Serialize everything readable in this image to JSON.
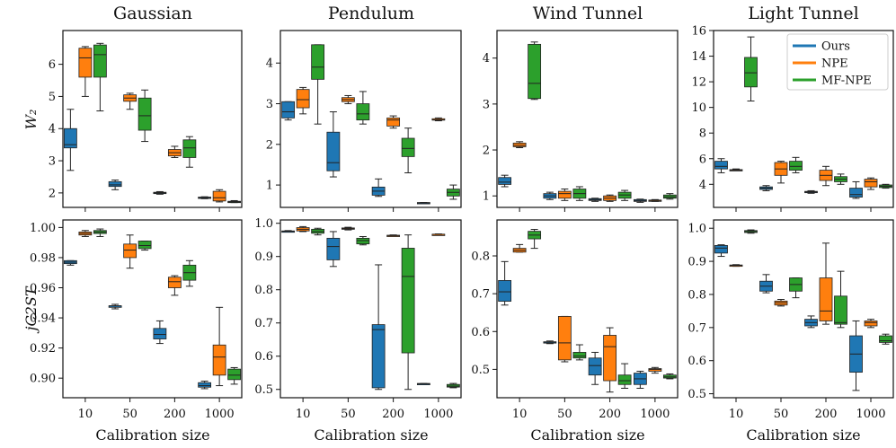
{
  "figure": {
    "col_titles": [
      "Gaussian",
      "Pendulum",
      "Wind Tunnel",
      "Light Tunnel"
    ],
    "row_ylabels": [
      "W₂",
      "jC2ST"
    ],
    "xlabel": "Calibration size",
    "x_ticks": [
      "10",
      "50",
      "200",
      "1000"
    ]
  },
  "colors": {
    "Ours": "#1f77b4",
    "NPE": "#ff7f0e",
    "MF-NPE": "#2ca02c"
  },
  "legend": [
    "Ours",
    "NPE",
    "MF-NPE"
  ],
  "chart_data": [
    {
      "type": "box",
      "title": "Gaussian",
      "ylabel": "W₂",
      "xlabel": "",
      "categories": [
        "10",
        "50",
        "200",
        "1000"
      ],
      "ylim": [
        1.55,
        7.05
      ],
      "yticks": [
        2,
        3,
        4,
        5,
        6
      ],
      "series": [
        {
          "name": "Ours",
          "boxes": [
            [
              2.7,
              3.4,
              3.5,
              4.0,
              4.6
            ],
            [
              2.1,
              2.2,
              2.25,
              2.35,
              2.4
            ],
            [
              1.96,
              1.98,
              2.0,
              2.02,
              2.04
            ],
            [
              1.82,
              1.83,
              1.85,
              1.87,
              1.88
            ]
          ]
        },
        {
          "name": "NPE",
          "boxes": [
            [
              5.0,
              5.6,
              6.2,
              6.5,
              6.55
            ],
            [
              4.6,
              4.85,
              4.95,
              5.05,
              5.1
            ],
            [
              3.1,
              3.15,
              3.25,
              3.35,
              3.45
            ],
            [
              1.72,
              1.75,
              1.85,
              2.05,
              2.1
            ]
          ]
        },
        {
          "name": "MF-NPE",
          "boxes": [
            [
              4.55,
              5.6,
              6.3,
              6.6,
              6.65
            ],
            [
              3.6,
              3.95,
              4.4,
              4.95,
              5.2
            ],
            [
              2.8,
              3.1,
              3.4,
              3.65,
              3.75
            ],
            [
              1.7,
              1.71,
              1.72,
              1.74,
              1.76
            ]
          ]
        }
      ]
    },
    {
      "type": "box",
      "title": "Pendulum",
      "ylabel": "",
      "xlabel": "",
      "categories": [
        "10",
        "50",
        "200",
        "1000"
      ],
      "ylim": [
        0.45,
        4.8
      ],
      "yticks": [
        1,
        2,
        3,
        4
      ],
      "series": [
        {
          "name": "Ours",
          "boxes": [
            [
              2.6,
              2.65,
              2.8,
              3.05,
              3.05
            ],
            [
              1.2,
              1.35,
              1.55,
              2.3,
              2.8
            ],
            [
              0.72,
              0.75,
              0.85,
              0.95,
              1.15
            ],
            [
              0.55,
              0.55,
              0.56,
              0.57,
              0.57
            ]
          ]
        },
        {
          "name": "NPE",
          "boxes": [
            [
              2.75,
              2.9,
              3.1,
              3.35,
              3.4
            ],
            [
              3.0,
              3.05,
              3.1,
              3.15,
              3.2
            ],
            [
              2.4,
              2.45,
              2.6,
              2.65,
              2.7
            ],
            [
              2.58,
              2.6,
              2.6,
              2.63,
              2.65
            ]
          ]
        },
        {
          "name": "MF-NPE",
          "boxes": [
            [
              2.5,
              3.6,
              3.9,
              4.45,
              4.45
            ],
            [
              2.5,
              2.6,
              2.75,
              3.0,
              3.3
            ],
            [
              1.3,
              1.7,
              1.9,
              2.15,
              2.4
            ],
            [
              0.65,
              0.73,
              0.82,
              0.9,
              1.0
            ]
          ]
        }
      ]
    },
    {
      "type": "box",
      "title": "Wind Tunnel",
      "ylabel": "",
      "xlabel": "",
      "categories": [
        "10",
        "50",
        "200",
        "1000"
      ],
      "ylim": [
        0.75,
        4.6
      ],
      "yticks": [
        1,
        2,
        3,
        4
      ],
      "series": [
        {
          "name": "Ours",
          "boxes": [
            [
              1.2,
              1.25,
              1.3,
              1.4,
              1.45
            ],
            [
              0.92,
              0.95,
              1.0,
              1.05,
              1.08
            ],
            [
              0.88,
              0.9,
              0.92,
              0.94,
              0.95
            ],
            [
              0.86,
              0.88,
              0.9,
              0.92,
              0.93
            ]
          ]
        },
        {
          "name": "NPE",
          "boxes": [
            [
              2.05,
              2.07,
              2.1,
              2.15,
              2.18
            ],
            [
              0.9,
              0.95,
              1.05,
              1.1,
              1.15
            ],
            [
              0.88,
              0.9,
              0.95,
              1.0,
              1.02
            ],
            [
              0.88,
              0.89,
              0.9,
              0.91,
              0.92
            ]
          ]
        },
        {
          "name": "MF-NPE",
          "boxes": [
            [
              3.1,
              3.12,
              3.45,
              4.3,
              4.35
            ],
            [
              0.9,
              0.95,
              1.05,
              1.15,
              1.2
            ],
            [
              0.9,
              0.95,
              1.02,
              1.08,
              1.12
            ],
            [
              0.93,
              0.95,
              0.98,
              1.02,
              1.05
            ]
          ]
        }
      ]
    },
    {
      "type": "box",
      "title": "Light Tunnel",
      "ylabel": "",
      "xlabel": "",
      "categories": [
        "10",
        "50",
        "200",
        "1000"
      ],
      "ylim": [
        2.2,
        16.0
      ],
      "yticks": [
        4,
        6,
        8,
        10,
        12,
        14,
        16
      ],
      "series": [
        {
          "name": "Ours",
          "boxes": [
            [
              4.9,
              5.2,
              5.4,
              5.8,
              6.0
            ],
            [
              3.5,
              3.6,
              3.7,
              3.8,
              3.9
            ],
            [
              3.3,
              3.35,
              3.4,
              3.45,
              3.5
            ],
            [
              2.9,
              3.0,
              3.2,
              3.7,
              4.2
            ]
          ]
        },
        {
          "name": "NPE",
          "boxes": [
            [
              5.1,
              5.1,
              5.1,
              5.15,
              5.2
            ],
            [
              4.1,
              4.7,
              5.2,
              5.7,
              5.8
            ],
            [
              3.9,
              4.3,
              4.7,
              5.1,
              5.4
            ],
            [
              3.6,
              3.8,
              4.2,
              4.4,
              4.5
            ]
          ]
        },
        {
          "name": "MF-NPE",
          "boxes": [
            [
              10.5,
              11.6,
              12.7,
              13.9,
              15.5
            ],
            [
              4.9,
              5.1,
              5.4,
              5.8,
              6.1
            ],
            [
              4.0,
              4.2,
              4.4,
              4.6,
              4.8
            ],
            [
              3.7,
              3.75,
              3.85,
              3.95,
              4.0
            ]
          ]
        }
      ]
    },
    {
      "type": "box",
      "title": "",
      "ylabel": "jC2ST",
      "xlabel": "Calibration size",
      "categories": [
        "10",
        "50",
        "200",
        "1000"
      ],
      "ylim": [
        0.887,
        1.005
      ],
      "yticks": [
        0.9,
        0.92,
        0.94,
        0.96,
        0.98,
        1.0
      ],
      "series": [
        {
          "name": "Ours",
          "boxes": [
            [
              0.975,
              0.976,
              0.977,
              0.978,
              0.978
            ],
            [
              0.946,
              0.947,
              0.948,
              0.948,
              0.949
            ],
            [
              0.923,
              0.926,
              0.929,
              0.933,
              0.938
            ],
            [
              0.893,
              0.894,
              0.895,
              0.897,
              0.898
            ]
          ]
        },
        {
          "name": "NPE",
          "boxes": [
            [
              0.994,
              0.995,
              0.996,
              0.997,
              0.998
            ],
            [
              0.973,
              0.98,
              0.985,
              0.989,
              0.995
            ],
            [
              0.955,
              0.96,
              0.964,
              0.967,
              0.968
            ],
            [
              0.895,
              0.902,
              0.914,
              0.922,
              0.947
            ]
          ]
        },
        {
          "name": "MF-NPE",
          "boxes": [
            [
              0.994,
              0.996,
              0.997,
              0.998,
              0.999
            ],
            [
              0.985,
              0.986,
              0.988,
              0.991,
              0.991
            ],
            [
              0.961,
              0.965,
              0.97,
              0.975,
              0.978
            ],
            [
              0.896,
              0.899,
              0.902,
              0.906,
              0.907
            ]
          ]
        }
      ]
    },
    {
      "type": "box",
      "title": "",
      "ylabel": "",
      "xlabel": "Calibration size",
      "categories": [
        "10",
        "50",
        "200",
        "1000"
      ],
      "ylim": [
        0.475,
        1.01
      ],
      "yticks": [
        0.5,
        0.6,
        0.7,
        0.8,
        0.9,
        1.0
      ],
      "series": [
        {
          "name": "Ours",
          "boxes": [
            [
              0.975,
              0.975,
              0.976,
              0.977,
              0.978
            ],
            [
              0.87,
              0.89,
              0.93,
              0.955,
              0.975
            ],
            [
              0.5,
              0.505,
              0.68,
              0.695,
              0.875
            ],
            [
              0.515,
              0.515,
              0.517,
              0.518,
              0.518
            ]
          ]
        },
        {
          "name": "NPE",
          "boxes": [
            [
              0.975,
              0.977,
              0.982,
              0.987,
              0.99
            ],
            [
              0.98,
              0.982,
              0.984,
              0.986,
              0.988
            ],
            [
              0.962,
              0.963,
              0.963,
              0.964,
              0.965
            ],
            [
              0.965,
              0.966,
              0.967,
              0.967,
              0.968
            ]
          ]
        },
        {
          "name": "MF-NPE",
          "boxes": [
            [
              0.965,
              0.97,
              0.975,
              0.982,
              0.985
            ],
            [
              0.935,
              0.938,
              0.948,
              0.955,
              0.96
            ],
            [
              0.5,
              0.61,
              0.84,
              0.925,
              0.965
            ],
            [
              0.505,
              0.507,
              0.51,
              0.515,
              0.518
            ]
          ]
        }
      ]
    },
    {
      "type": "box",
      "title": "",
      "ylabel": "",
      "xlabel": "Calibration size",
      "categories": [
        "10",
        "50",
        "200",
        "1000"
      ],
      "ylim": [
        0.425,
        0.895
      ],
      "yticks": [
        0.5,
        0.6,
        0.7,
        0.8
      ],
      "series": [
        {
          "name": "Ours",
          "boxes": [
            [
              0.67,
              0.68,
              0.705,
              0.735,
              0.785
            ],
            [
              0.568,
              0.57,
              0.572,
              0.573,
              0.575
            ],
            [
              0.46,
              0.485,
              0.51,
              0.53,
              0.545
            ],
            [
              0.45,
              0.46,
              0.475,
              0.49,
              0.495
            ]
          ]
        },
        {
          "name": "NPE",
          "boxes": [
            [
              0.81,
              0.81,
              0.815,
              0.82,
              0.83
            ],
            [
              0.52,
              0.525,
              0.57,
              0.64,
              0.64
            ],
            [
              0.44,
              0.47,
              0.56,
              0.59,
              0.61
            ],
            [
              0.49,
              0.495,
              0.5,
              0.502,
              0.505
            ]
          ]
        },
        {
          "name": "MF-NPE",
          "boxes": [
            [
              0.82,
              0.845,
              0.855,
              0.865,
              0.87
            ],
            [
              0.525,
              0.53,
              0.535,
              0.545,
              0.565
            ],
            [
              0.45,
              0.46,
              0.47,
              0.485,
              0.515
            ],
            [
              0.475,
              0.477,
              0.48,
              0.485,
              0.488
            ]
          ]
        }
      ]
    },
    {
      "type": "box",
      "title": "",
      "ylabel": "",
      "xlabel": "Calibration size",
      "categories": [
        "10",
        "50",
        "200",
        "1000"
      ],
      "ylim": [
        0.488,
        1.025
      ],
      "yticks": [
        0.5,
        0.6,
        0.7,
        0.8,
        0.9,
        1.0
      ],
      "series": [
        {
          "name": "Ours",
          "boxes": [
            [
              0.915,
              0.925,
              0.94,
              0.948,
              0.95
            ],
            [
              0.805,
              0.81,
              0.825,
              0.84,
              0.86
            ],
            [
              0.7,
              0.705,
              0.715,
              0.725,
              0.735
            ],
            [
              0.51,
              0.565,
              0.62,
              0.675,
              0.72
            ]
          ]
        },
        {
          "name": "NPE",
          "boxes": [
            [
              0.885,
              0.886,
              0.888,
              0.889,
              0.89
            ],
            [
              0.765,
              0.768,
              0.775,
              0.78,
              0.785
            ],
            [
              0.71,
              0.72,
              0.75,
              0.85,
              0.955
            ],
            [
              0.7,
              0.705,
              0.715,
              0.72,
              0.725
            ]
          ]
        },
        {
          "name": "MF-NPE",
          "boxes": [
            [
              0.985,
              0.987,
              0.99,
              0.993,
              0.995
            ],
            [
              0.79,
              0.81,
              0.83,
              0.85,
              0.85
            ],
            [
              0.7,
              0.71,
              0.715,
              0.795,
              0.87
            ],
            [
              0.65,
              0.655,
              0.66,
              0.675,
              0.68
            ]
          ]
        }
      ]
    }
  ]
}
